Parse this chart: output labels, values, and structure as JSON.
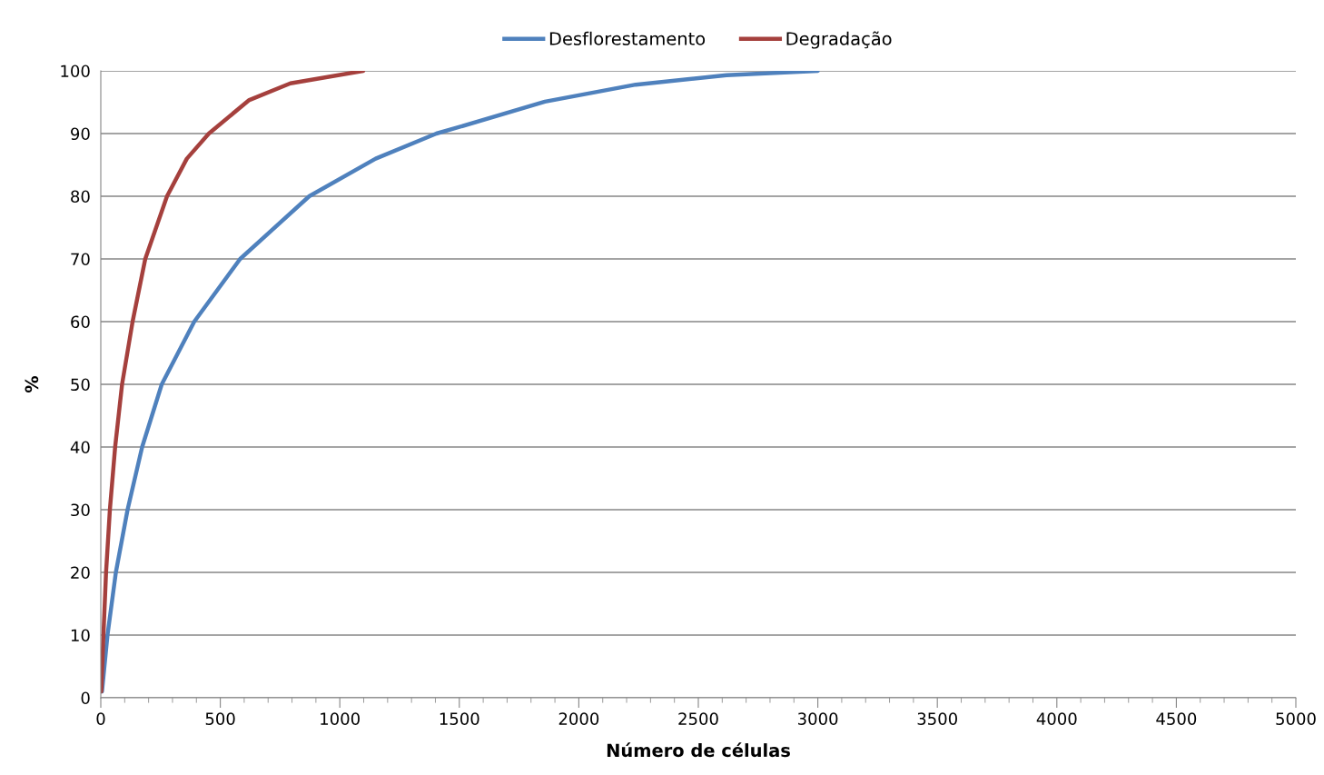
{
  "chart_data": {
    "type": "line",
    "xlabel": "Número de células",
    "ylabel": "%",
    "series": [
      {
        "name": "Desflorestamento",
        "color": "#4f81bd",
        "x": [
          5,
          28,
          63,
          112,
          173,
          255,
          391,
          583,
          872,
          1150,
          1404,
          1478,
          1858,
          2238,
          2618,
          3000
        ],
        "values": [
          1,
          10,
          20,
          30,
          40,
          50,
          60,
          70,
          80,
          86,
          90,
          90.8,
          95.1,
          97.8,
          99.3,
          100
        ]
      },
      {
        "name": "Degradação",
        "color": "#a5403d",
        "x": [
          2,
          11,
          22,
          38,
          60,
          89,
          133,
          186,
          277,
          360,
          452,
          619,
          793,
          1098
        ],
        "values": [
          1,
          10,
          20,
          30,
          40,
          50,
          60,
          70,
          80,
          86,
          90,
          95.3,
          98,
          100
        ]
      }
    ],
    "xlim": [
      0,
      5000
    ],
    "xticks": [
      0,
      500,
      1000,
      1500,
      2000,
      2500,
      3000,
      3500,
      4000,
      4500,
      5000
    ],
    "ylim": [
      0,
      100
    ],
    "yticks": [
      0,
      10,
      20,
      30,
      40,
      50,
      60,
      70,
      80,
      90,
      100
    ],
    "grid": "y",
    "legend": "top",
    "marker": "none",
    "line_style": "solid"
  }
}
